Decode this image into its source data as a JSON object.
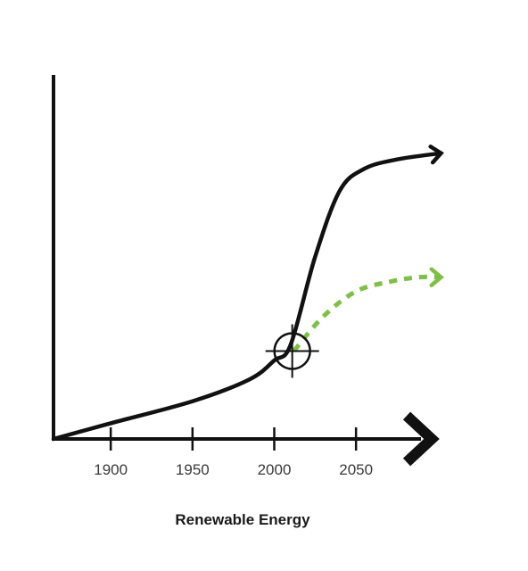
{
  "chart_data": {
    "type": "line",
    "title": "",
    "xlabel": "Renewable Energy",
    "ylabel": "",
    "x_ticks": [
      1900,
      1950,
      2000,
      2050
    ],
    "xlim": [
      1865,
      2105
    ],
    "ylim": [
      0,
      100
    ],
    "grid": false,
    "legend": "none",
    "series": [
      {
        "style": "solid",
        "color": "#111111",
        "points": [
          [
            1865,
            0
          ],
          [
            1900,
            5
          ],
          [
            1950,
            12
          ],
          [
            1985,
            19
          ],
          [
            2000,
            25
          ],
          [
            2010,
            30
          ],
          [
            2025,
            58
          ],
          [
            2040,
            79
          ],
          [
            2055,
            86
          ],
          [
            2075,
            89
          ],
          [
            2102,
            91
          ]
        ]
      },
      {
        "style": "dotted",
        "color": "#7cc242",
        "points": [
          [
            2012,
            28
          ],
          [
            2030,
            39
          ],
          [
            2050,
            47
          ],
          [
            2070,
            50
          ],
          [
            2088,
            51.5
          ],
          [
            2102,
            51.5
          ]
        ]
      }
    ],
    "annotations": [
      {
        "type": "crosshair-target",
        "x": 2011,
        "y": 28
      }
    ]
  }
}
